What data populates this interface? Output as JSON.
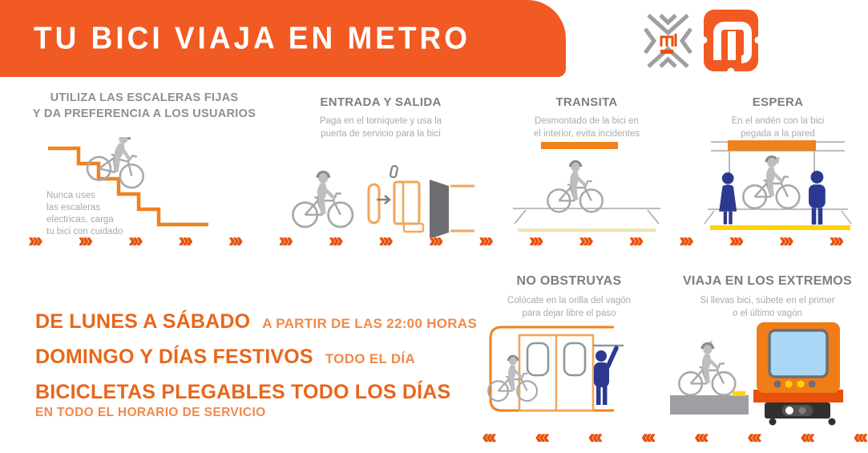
{
  "header": {
    "title": "TU BICI VIAJA EN METRO"
  },
  "logos": {
    "mi_text": "mi"
  },
  "sections": {
    "escaleras": {
      "title1": "UTILIZA LAS ESCALERAS FIJAS",
      "title2": "Y DA PREFERENCIA  A LOS USUARIOS",
      "caption1": "Nunca uses",
      "caption2": "las escaleras",
      "caption3": "electricas, carga",
      "caption4": "tu bici con cuidado"
    },
    "entrada": {
      "title": "ENTRADA Y SALIDA",
      "sub1": "Paga en el torniquete y usa la",
      "sub2": "puerta de servicio para la bici"
    },
    "transita": {
      "title": "TRANSITA",
      "sub1": "Desmontado de la bici en",
      "sub2": "el interior, evita incidentes"
    },
    "espera": {
      "title": "ESPERA",
      "sub1": "En el andén con la bici",
      "sub2": "pegada a la pared"
    },
    "no_obstruyas": {
      "title": "NO OBSTRUYAS",
      "sub1": "Colócate en la orilla del vagón",
      "sub2": "para dejar libre el paso"
    },
    "extremos": {
      "title": "VIAJA EN LOS EXTREMOS",
      "sub1": "Si llevas bici, súbete en el primer",
      "sub2": "o el último vagón"
    }
  },
  "schedule": {
    "line1_main": "DE LUNES A SÁBADO",
    "line1_detail": "A PARTIR DE LAS 22:00 HORAS",
    "line2_main": "DOMINGO Y DÍAS FESTIVOS",
    "line2_detail": "TODO EL DÍA",
    "line3_main": "BICICLETAS PLEGABLES TODO LOS DÍAS",
    "footer": "EN TODO EL HORARIO DE SERVICIO"
  },
  "icons": {
    "chevrons_right": "›››",
    "chevrons_left": "‹‹‹"
  },
  "layout_counts": {
    "mid_arrows": 17,
    "bottom_arrows": 8
  },
  "colors": {
    "banner_orange": "#F15A22",
    "illustration_orange": "#F0821E",
    "arrow_orange": "#E8500B",
    "navy": "#2B3990",
    "platform_yellow": "#FFD20A"
  }
}
